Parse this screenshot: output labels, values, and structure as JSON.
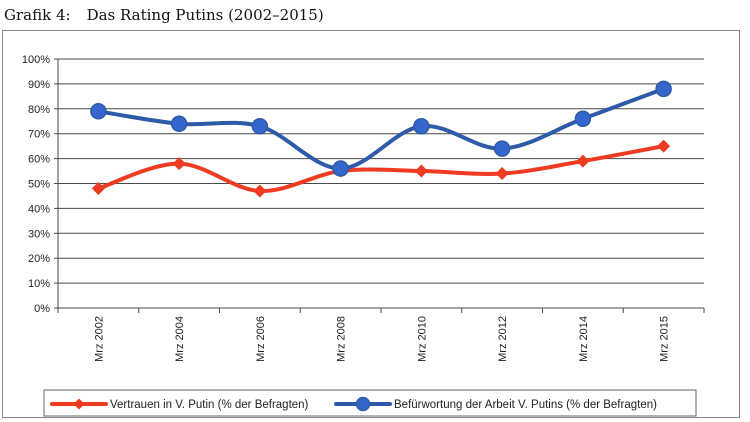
{
  "figure": {
    "label": "Grafik 4:",
    "title": "Das Rating Putins (2002–2015)"
  },
  "colors": {
    "vertrauen": "#ee3b22",
    "befuerwortung": "#2e5aa8",
    "marker_fill": "#3367cc",
    "grid": "#4a4a4a"
  },
  "chart_data": {
    "type": "line",
    "categories": [
      "Mrz 2002",
      "Mrz 2004",
      "Mrz 2006",
      "Mrz 2008",
      "Mrz 2010",
      "Mrz 2012",
      "Mrz 2014",
      "Mrz 2015"
    ],
    "ylim": [
      0,
      100
    ],
    "yticks": [
      "0%",
      "10%",
      "20%",
      "30%",
      "40%",
      "50%",
      "60%",
      "70%",
      "80%",
      "90%",
      "100%"
    ],
    "grid": true,
    "legend_position": "bottom",
    "series": [
      {
        "name": "Vertrauen in V. Putin (% der Befragten)",
        "values": [
          48,
          58,
          47,
          55,
          55,
          54,
          59,
          65
        ],
        "marker": "diamond"
      },
      {
        "name": "Befürwortung der Arbeit V. Putins (% der Befragten)",
        "values": [
          79,
          74,
          73,
          56,
          73,
          64,
          76,
          88
        ],
        "marker": "circle"
      }
    ]
  }
}
